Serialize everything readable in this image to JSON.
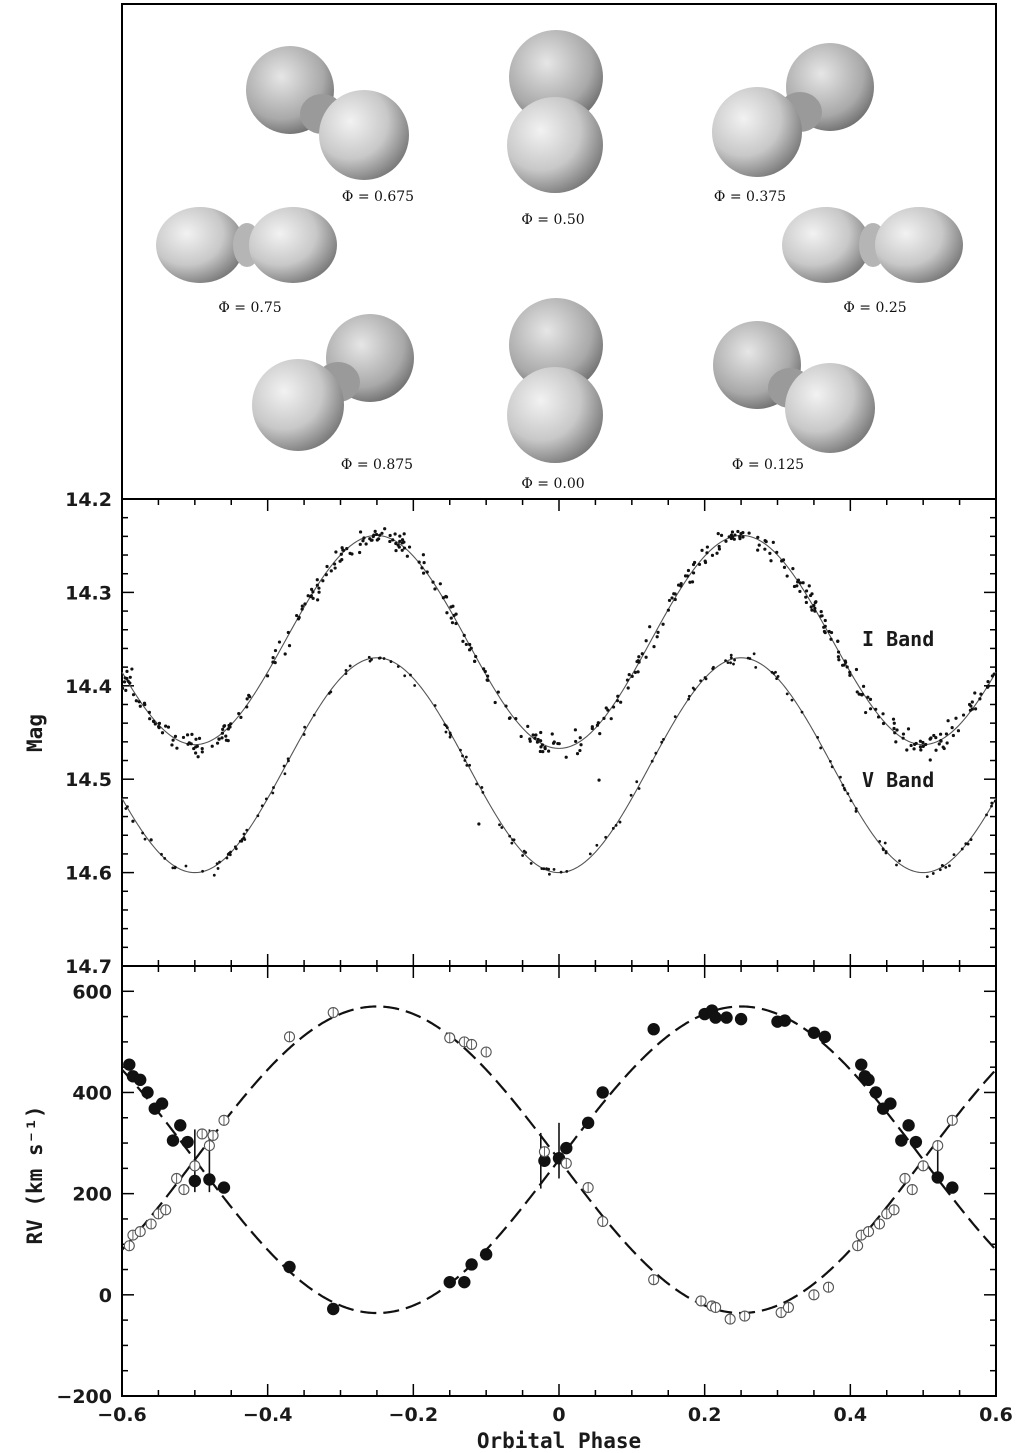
{
  "chart_data": [
    {
      "type": "diagram",
      "panel": "binary-geometry",
      "phase_labels": [
        {
          "id": "p0675",
          "text": "Φ = 0.675",
          "phase": 0.675
        },
        {
          "id": "p050",
          "text": "Φ = 0.50",
          "phase": 0.5
        },
        {
          "id": "p0375",
          "text": "Φ = 0.375",
          "phase": 0.375
        },
        {
          "id": "p075",
          "text": "Φ = 0.75",
          "phase": 0.75
        },
        {
          "id": "p025",
          "text": "Φ = 0.25",
          "phase": 0.25
        },
        {
          "id": "p0875",
          "text": "Φ = 0.875",
          "phase": 0.875
        },
        {
          "id": "p000",
          "text": "Φ = 0.00",
          "phase": 0.0
        },
        {
          "id": "p0125",
          "text": "Φ = 0.125",
          "phase": 0.125
        }
      ]
    },
    {
      "type": "scatter",
      "panel": "light-curve",
      "xlim": [
        -0.6,
        0.6
      ],
      "ylim": [
        14.2,
        14.7
      ],
      "y_inverted": true,
      "ylabel": "Mag",
      "y_ticks": [
        "14.2",
        "14.3",
        "14.4",
        "14.5",
        "14.6",
        "14.7"
      ],
      "series": [
        {
          "name": "I Band",
          "mean": 14.352,
          "amp1": 0.113,
          "amp2": 0.002,
          "scatter": 0.006,
          "n_points": 420
        },
        {
          "name": "V Band",
          "mean": 14.485,
          "amp1": 0.115,
          "amp2": 0.0,
          "scatter": 0.003,
          "n_points": 170
        }
      ],
      "outliers": [
        {
          "x": -0.37,
          "y": 14.357,
          "series": "V Band"
        },
        {
          "x": -0.11,
          "y": 14.548,
          "series": "V Band"
        },
        {
          "x": 0.055,
          "y": 14.501,
          "series": "V Band"
        },
        {
          "x": -0.585,
          "y": 14.545,
          "series": "V Band"
        },
        {
          "x": -0.56,
          "y": 14.565,
          "series": "V Band"
        }
      ]
    },
    {
      "type": "scatter",
      "panel": "radial-velocity",
      "xlim": [
        -0.6,
        0.6
      ],
      "ylim": [
        -200,
        650
      ],
      "xlabel": "Orbital Phase",
      "ylabel": "RV (km s⁻¹)",
      "x_ticks": [
        "−0.6",
        "−0.4",
        "−0.2",
        "0",
        "0.2",
        "0.4",
        "0.6"
      ],
      "y_ticks": [
        "−200",
        "0",
        "200",
        "400",
        "600"
      ],
      "curves": [
        {
          "name": "primary fit",
          "gamma": 267,
          "K": 303,
          "sign": 1,
          "style": "dashed"
        },
        {
          "name": "secondary fit",
          "gamma": 267,
          "K": 303,
          "sign": -1,
          "style": "dashed"
        }
      ],
      "series": [
        {
          "name": "filled",
          "marker": "filled-circle",
          "points": [
            [
              -0.59,
              455
            ],
            [
              -0.585,
              432
            ],
            [
              -0.575,
              425
            ],
            [
              -0.565,
              400
            ],
            [
              -0.555,
              368
            ],
            [
              -0.545,
              378
            ],
            [
              -0.53,
              305
            ],
            [
              -0.52,
              335
            ],
            [
              -0.51,
              302
            ],
            [
              -0.5,
              225
            ],
            [
              -0.48,
              228
            ],
            [
              -0.46,
              212
            ],
            [
              -0.37,
              55
            ],
            [
              -0.31,
              -28
            ],
            [
              -0.15,
              25
            ],
            [
              -0.13,
              25
            ],
            [
              -0.12,
              60
            ],
            [
              -0.1,
              80
            ],
            [
              -0.02,
              265
            ],
            [
              0.0,
              270
            ],
            [
              0.01,
              290
            ],
            [
              0.04,
              340
            ],
            [
              0.06,
              400
            ],
            [
              0.13,
              525
            ],
            [
              0.2,
              555
            ],
            [
              0.21,
              562
            ],
            [
              0.215,
              548
            ],
            [
              0.23,
              548
            ],
            [
              0.25,
              545
            ],
            [
              0.3,
              540
            ],
            [
              0.31,
              542
            ],
            [
              0.35,
              518
            ],
            [
              0.365,
              510
            ],
            [
              0.415,
              455
            ],
            [
              0.42,
              432
            ],
            [
              0.425,
              425
            ],
            [
              0.435,
              400
            ],
            [
              0.445,
              368
            ],
            [
              0.455,
              378
            ],
            [
              0.47,
              305
            ],
            [
              0.48,
              335
            ],
            [
              0.49,
              302
            ],
            [
              0.52,
              232
            ],
            [
              0.54,
              212
            ]
          ]
        },
        {
          "name": "open",
          "marker": "open-circle",
          "points": [
            [
              -0.59,
              97
            ],
            [
              -0.585,
              118
            ],
            [
              -0.575,
              125
            ],
            [
              -0.56,
              140
            ],
            [
              -0.55,
              160
            ],
            [
              -0.54,
              168
            ],
            [
              -0.525,
              230
            ],
            [
              -0.515,
              208
            ],
            [
              -0.5,
              255
            ],
            [
              -0.49,
              318
            ],
            [
              -0.48,
              295
            ],
            [
              -0.475,
              315
            ],
            [
              -0.46,
              345
            ],
            [
              -0.37,
              510
            ],
            [
              -0.31,
              558
            ],
            [
              -0.15,
              508
            ],
            [
              -0.13,
              500
            ],
            [
              -0.12,
              495
            ],
            [
              -0.1,
              480
            ],
            [
              -0.02,
              283
            ],
            [
              0.01,
              260
            ],
            [
              0.04,
              212
            ],
            [
              0.06,
              145
            ],
            [
              0.13,
              30
            ],
            [
              0.195,
              -12
            ],
            [
              0.21,
              -22
            ],
            [
              0.215,
              -25
            ],
            [
              0.235,
              -48
            ],
            [
              0.255,
              -42
            ],
            [
              0.305,
              -35
            ],
            [
              0.315,
              -25
            ],
            [
              0.35,
              0
            ],
            [
              0.37,
              15
            ],
            [
              0.41,
              97
            ],
            [
              0.415,
              118
            ],
            [
              0.425,
              125
            ],
            [
              0.44,
              140
            ],
            [
              0.45,
              160
            ],
            [
              0.46,
              168
            ],
            [
              0.475,
              230
            ],
            [
              0.485,
              208
            ],
            [
              0.5,
              255
            ],
            [
              0.52,
              295
            ],
            [
              0.54,
              345
            ]
          ]
        }
      ],
      "error_bars": [
        {
          "x": -0.5,
          "y": 265,
          "half": 62
        },
        {
          "x": -0.48,
          "y": 265,
          "half": 62
        },
        {
          "x": -0.025,
          "y": 265,
          "half": 55
        },
        {
          "x": 0.0,
          "y": 285,
          "half": 55
        },
        {
          "x": 0.52,
          "y": 265,
          "half": 40
        }
      ]
    }
  ]
}
